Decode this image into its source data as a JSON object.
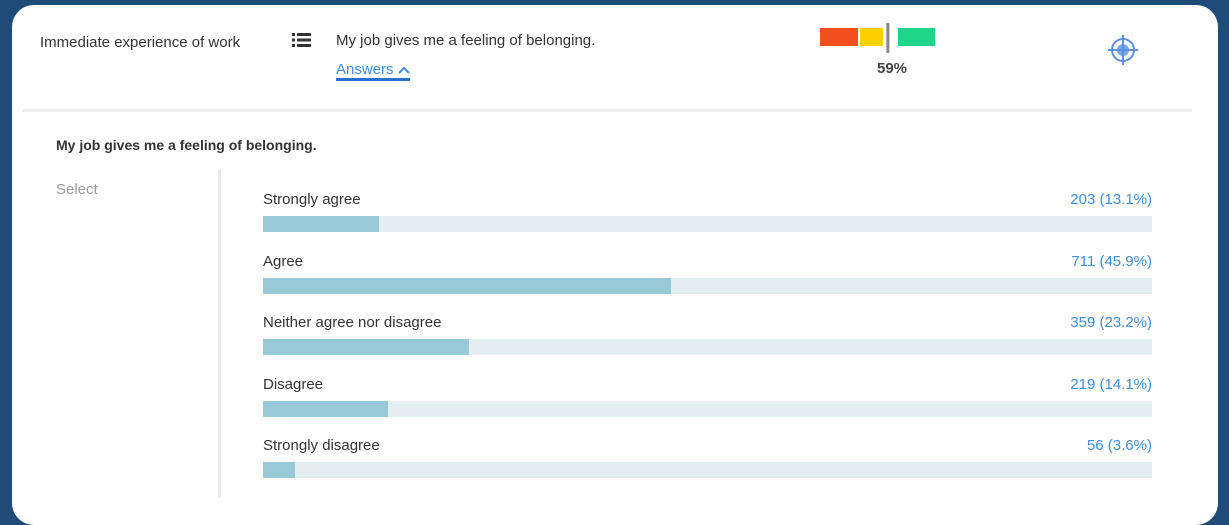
{
  "header": {
    "category": "Immediate experience of work",
    "question": "My job gives me a feeling of belonging.",
    "answers_link": "Answers",
    "score": {
      "value": 59,
      "label": "59%"
    },
    "score_range": [
      0,
      100
    ]
  },
  "panel": {
    "title": "My job gives me a feeling of belonging.",
    "filter": "Select",
    "xlim": [
      0,
      100
    ],
    "answers": [
      {
        "label": "Strongly agree",
        "percent": 13.1,
        "value_label": "203 (13.1%)"
      },
      {
        "label": "Agree",
        "percent": 45.9,
        "value_label": "711 (45.9%)"
      },
      {
        "label": "Neither agree nor disagree",
        "percent": 23.2,
        "value_label": "359 (23.2%)"
      },
      {
        "label": "Disagree",
        "percent": 14.1,
        "value_label": "219 (14.1%)"
      },
      {
        "label": "Strongly disagree",
        "percent": 3.6,
        "value_label": "56 (3.6%)"
      }
    ]
  }
}
